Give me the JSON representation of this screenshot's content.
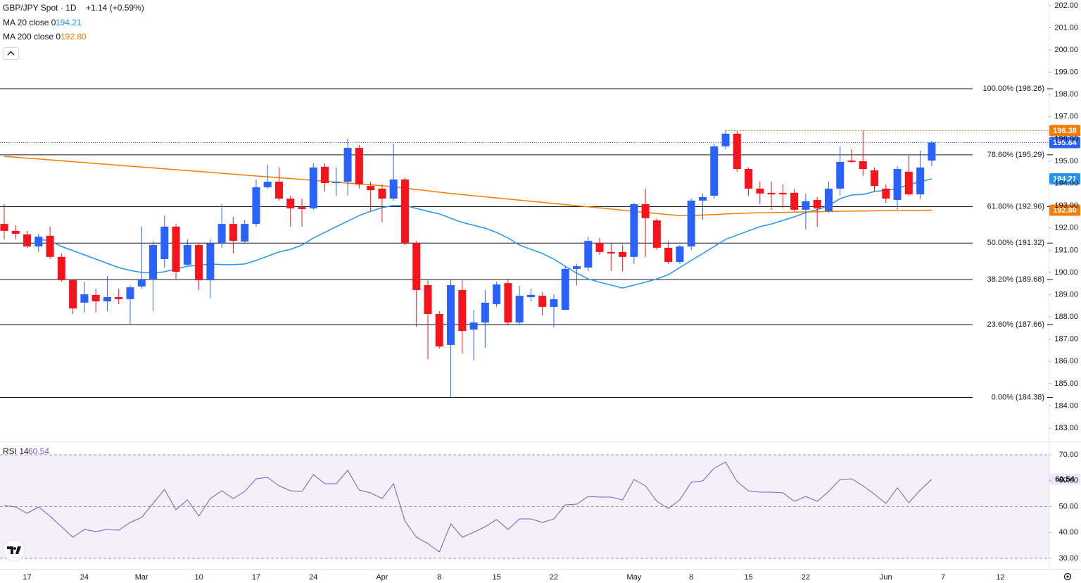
{
  "chart_data": [
    {
      "type": "candlestick",
      "title": "GBP/JPY Spot · 1D",
      "change": "+1.14 (+0.59%)",
      "categories": [
        null,
        null,
        "17",
        null,
        null,
        null,
        null,
        "24",
        null,
        null,
        null,
        null,
        "Mar",
        null,
        null,
        null,
        null,
        "10",
        null,
        null,
        null,
        null,
        "17",
        null,
        null,
        null,
        null,
        "24",
        null,
        null,
        null,
        null,
        null,
        "Apr",
        null,
        null,
        null,
        null,
        "8",
        null,
        null,
        null,
        null,
        "15",
        null,
        null,
        null,
        null,
        "22",
        null,
        null,
        null,
        null,
        null,
        null,
        "May",
        null,
        null,
        null,
        null,
        "8",
        null,
        null,
        null,
        null,
        "15",
        null,
        null,
        null,
        null,
        "22",
        null,
        null,
        null,
        null,
        null,
        null,
        "Jun",
        null,
        null,
        null,
        null,
        "7",
        null,
        null,
        null,
        null,
        "12"
      ],
      "open": [
        192.18,
        191.87,
        191.71,
        191.17,
        191.65,
        190.7,
        189.65,
        188.64,
        188.99,
        188.7,
        188.89,
        188.8,
        189.37,
        189.71,
        190.6,
        192.06,
        190.35,
        191.23,
        189.65,
        191.33,
        192.18,
        191.39,
        192.18,
        193.83,
        194.08,
        193.32,
        192.94,
        192.88,
        194.75,
        194.02,
        194.08,
        195.6,
        193.89,
        193.77,
        193.32,
        194.18,
        191.33,
        189.43,
        188.13,
        186.74,
        189.21,
        187.43,
        187.75,
        188.57,
        189.52,
        187.75,
        188.89,
        188.95,
        188.45,
        188.32,
        190.16,
        190.22,
        191.33,
        190.92,
        190.92,
        190.7,
        193.07,
        192.34,
        191.11,
        190.47,
        191.17,
        193.23,
        193.45,
        195.67,
        196.24,
        194.65,
        193.77,
        193.58,
        193.58,
        193.58,
        192.82,
        193.26,
        192.75,
        193.77,
        195.03,
        195.0,
        194.59,
        193.77,
        193.26,
        194.53,
        193.51,
        195.03,
        null,
        null,
        null,
        null,
        null,
        null
      ],
      "high": [
        193.07,
        192.12,
        191.87,
        191.74,
        192.06,
        190.85,
        189.71,
        189.59,
        189.27,
        189.84,
        189.27,
        189.43,
        192.06,
        191.42,
        192.56,
        192.18,
        191.49,
        191.33,
        191.49,
        193.07,
        192.5,
        192.37,
        194.18,
        194.84,
        194.72,
        193.45,
        193.32,
        194.91,
        194.91,
        194.72,
        196.02,
        195.73,
        194.08,
        193.96,
        195.79,
        194.27,
        191.42,
        189.65,
        188.26,
        189.65,
        189.65,
        188.32,
        189.21,
        189.59,
        189.71,
        189.4,
        189.27,
        189.11,
        189.02,
        190.28,
        190.38,
        191.61,
        191.55,
        191.33,
        191.23,
        193.13,
        193.77,
        192.44,
        191.42,
        191.23,
        193.32,
        193.55,
        195.79,
        196.38,
        196.36,
        194.72,
        194.08,
        194.08,
        193.96,
        193.77,
        193.55,
        193.39,
        194.08,
        195.67,
        195.54,
        196.38,
        194.72,
        193.96,
        194.78,
        195.29,
        195.48,
        195.92,
        null,
        null,
        null,
        null,
        null,
        null
      ],
      "low": [
        191.49,
        191.49,
        191.11,
        190.92,
        190.6,
        189.59,
        188.13,
        188.19,
        188.19,
        188.26,
        188.57,
        187.69,
        189.27,
        188.26,
        190.22,
        189.71,
        190.28,
        189.21,
        188.83,
        191.11,
        190.85,
        191.33,
        192.06,
        193.77,
        193.23,
        192.06,
        192.06,
        192.82,
        193.64,
        193.45,
        193.45,
        193.77,
        192.75,
        192.25,
        193.23,
        191.23,
        187.56,
        186.1,
        186.58,
        184.38,
        186.36,
        186.04,
        186.61,
        188.45,
        187.62,
        187.62,
        188.7,
        188.07,
        187.53,
        188.32,
        189.43,
        190.06,
        190.79,
        190.06,
        190.06,
        190.38,
        190.7,
        191.01,
        190.38,
        190.38,
        191.01,
        192.37,
        193.32,
        195.54,
        194.53,
        193.45,
        193.07,
        192.82,
        192.88,
        192.75,
        191.93,
        192.06,
        192.69,
        193.45,
        194.91,
        194.34,
        193.64,
        193.13,
        192.82,
        193.45,
        193.3,
        194.78,
        null,
        null,
        null,
        null,
        null,
        null
      ],
      "close": [
        191.87,
        191.74,
        191.17,
        191.61,
        190.7,
        189.65,
        188.38,
        189.02,
        188.7,
        188.89,
        188.8,
        189.33,
        189.68,
        191.23,
        192.06,
        190.03,
        191.23,
        189.65,
        191.3,
        192.18,
        191.42,
        192.18,
        193.83,
        194.08,
        193.32,
        192.88,
        192.85,
        194.72,
        194.02,
        194.08,
        195.6,
        193.96,
        193.7,
        193.32,
        194.18,
        191.33,
        189.21,
        188.13,
        186.67,
        189.43,
        187.37,
        187.75,
        188.64,
        189.46,
        187.75,
        188.95,
        188.99,
        188.45,
        188.8,
        190.16,
        190.28,
        191.42,
        190.92,
        190.85,
        190.7,
        193.07,
        192.44,
        191.11,
        190.47,
        191.17,
        193.23,
        193.39,
        195.67,
        196.24,
        194.65,
        193.77,
        193.55,
        193.51,
        193.51,
        192.82,
        193.2,
        192.88,
        193.77,
        194.97,
        194.97,
        194.65,
        193.89,
        193.32,
        194.65,
        193.51,
        194.72,
        195.84,
        null,
        null,
        null,
        null,
        null,
        null
      ],
      "up_color": "#2962ff",
      "down_color": "#f7131b",
      "ylim": [
        182.4,
        202.25
      ],
      "yticks": [
        {
          "value": 202,
          "label": "202.00"
        },
        {
          "value": 201,
          "label": "201.00"
        },
        {
          "value": 200,
          "label": "200.00"
        },
        {
          "value": 199,
          "label": "199.00"
        },
        {
          "value": 198,
          "label": "198.00"
        },
        {
          "value": 197,
          "label": "197.00"
        },
        {
          "value": 196,
          "label": "196.00"
        },
        {
          "value": 195,
          "label": "195.00"
        },
        {
          "value": 194,
          "label": "194.00"
        },
        {
          "value": 193,
          "label": "193.00"
        },
        {
          "value": 192,
          "label": "192.00"
        },
        {
          "value": 191,
          "label": "191.00"
        },
        {
          "value": 190,
          "label": "190.00"
        },
        {
          "value": 189,
          "label": "189.00"
        },
        {
          "value": 188,
          "label": "188.00"
        },
        {
          "value": 187,
          "label": "187.00"
        },
        {
          "value": 186,
          "label": "186.00"
        },
        {
          "value": 185,
          "label": "185.00"
        },
        {
          "value": 184,
          "label": "184.00"
        },
        {
          "value": 183,
          "label": "183.00"
        }
      ],
      "fib_levels": [
        {
          "label": "100.00% (198.26)",
          "value": 198.26
        },
        {
          "label": "78.60% (195.29)",
          "value": 195.29
        },
        {
          "label": "61.80% (192.96)",
          "value": 192.96
        },
        {
          "label": "50.00% (191.32)",
          "value": 191.32
        },
        {
          "label": "38.20% (189.68)",
          "value": 189.68
        },
        {
          "label": "23.60% (187.66)",
          "value": 187.66
        },
        {
          "label": "0.00% (184.38)",
          "value": 184.38
        }
      ],
      "price_line": {
        "value": 195.84,
        "label": "195.84",
        "color": "#2962ff"
      },
      "high_line": {
        "value": 196.38,
        "label": "196.38",
        "color": "#f57c00"
      },
      "series": [
        {
          "name": "MA 20 close 0",
          "color": "#2196f3",
          "last": {
            "value": 194.21,
            "label": "194.21"
          },
          "values": [
            null,
            null,
            null,
            191.49,
            191.42,
            191.17,
            190.98,
            190.79,
            190.6,
            190.41,
            190.22,
            190.09,
            190.0,
            189.97,
            190.03,
            190.16,
            190.28,
            190.32,
            190.38,
            190.35,
            190.35,
            190.38,
            190.54,
            190.73,
            190.92,
            191.04,
            191.23,
            191.55,
            191.8,
            192.06,
            192.31,
            192.56,
            192.75,
            192.91,
            193.01,
            193.01,
            192.88,
            192.75,
            192.63,
            192.44,
            192.25,
            192.12,
            191.99,
            191.8,
            191.55,
            191.23,
            191.04,
            190.85,
            190.6,
            190.28,
            189.97,
            189.71,
            189.56,
            189.43,
            189.3,
            189.43,
            189.56,
            189.71,
            189.9,
            190.22,
            190.54,
            190.85,
            191.17,
            191.49,
            191.68,
            191.87,
            192.06,
            192.18,
            192.34,
            192.5,
            192.69,
            192.82,
            193.01,
            193.32,
            193.48,
            193.51,
            193.64,
            193.7,
            193.77,
            193.96,
            194.08,
            194.21,
            null,
            null,
            null,
            null,
            null,
            null
          ]
        },
        {
          "name": "MA 200 close 0",
          "color": "#f57c00",
          "last": {
            "value": 192.8,
            "label": "192.80"
          },
          "values": [
            195.22,
            195.18,
            195.14,
            195.1,
            195.06,
            195.02,
            194.98,
            194.94,
            194.9,
            194.86,
            194.82,
            194.78,
            194.74,
            194.7,
            194.66,
            194.62,
            194.58,
            194.54,
            194.5,
            194.46,
            194.42,
            194.38,
            194.34,
            194.3,
            194.26,
            194.22,
            194.18,
            194.14,
            194.1,
            194.06,
            194.02,
            193.98,
            193.94,
            193.9,
            193.85,
            193.79,
            193.73,
            193.67,
            193.61,
            193.55,
            193.5,
            193.45,
            193.4,
            193.35,
            193.3,
            193.25,
            193.2,
            193.15,
            193.1,
            193.05,
            193.0,
            192.95,
            192.9,
            192.85,
            192.8,
            192.75,
            192.7,
            192.65,
            192.6,
            192.56,
            192.56,
            192.58,
            192.6,
            192.63,
            192.65,
            192.67,
            192.68,
            192.69,
            192.7,
            192.71,
            192.72,
            192.73,
            192.74,
            192.75,
            192.76,
            192.76,
            192.77,
            192.78,
            192.78,
            192.79,
            192.79,
            192.8,
            null,
            null,
            null,
            null,
            null,
            null
          ]
        }
      ]
    },
    {
      "type": "line",
      "ylim": [
        25.9,
        74.9
      ],
      "yticks": [
        {
          "value": 70,
          "label": "70.00"
        },
        {
          "value": 60,
          "label": "60.00"
        },
        {
          "value": 50,
          "label": "50.00"
        },
        {
          "value": 40,
          "label": "40.00"
        },
        {
          "value": 30,
          "label": "30.00"
        }
      ],
      "levels": [
        30,
        50,
        70
      ],
      "series": [
        {
          "name": "RSI 14",
          "color": "#7e57c2",
          "last": {
            "value": 60.54,
            "label": "60.54"
          },
          "values": [
            50.41,
            49.86,
            47.41,
            49.86,
            46.33,
            42.24,
            38.16,
            41.16,
            40.34,
            41.16,
            40.88,
            43.88,
            45.78,
            51.22,
            56.67,
            48.78,
            52.59,
            46.33,
            53.13,
            56.12,
            53.13,
            55.85,
            60.75,
            61.29,
            58.03,
            56.12,
            55.85,
            62.38,
            58.84,
            58.84,
            64.01,
            56.39,
            55.31,
            53.13,
            58.84,
            44.42,
            38.16,
            35.71,
            32.45,
            43.33,
            38.16,
            40.07,
            42.24,
            44.97,
            41.16,
            45.24,
            45.24,
            43.88,
            45.24,
            50.68,
            50.95,
            53.95,
            53.67,
            53.67,
            52.59,
            60.48,
            58.03,
            52.04,
            49.32,
            52.59,
            59.39,
            59.93,
            64.83,
            67.28,
            59.66,
            56.12,
            55.58,
            55.58,
            55.31,
            52.04,
            53.95,
            52.04,
            55.85,
            60.48,
            60.75,
            58.03,
            54.76,
            51.22,
            57.21,
            51.5,
            56.39,
            60.54,
            null,
            null,
            null,
            null,
            null,
            null
          ]
        }
      ]
    }
  ]
}
